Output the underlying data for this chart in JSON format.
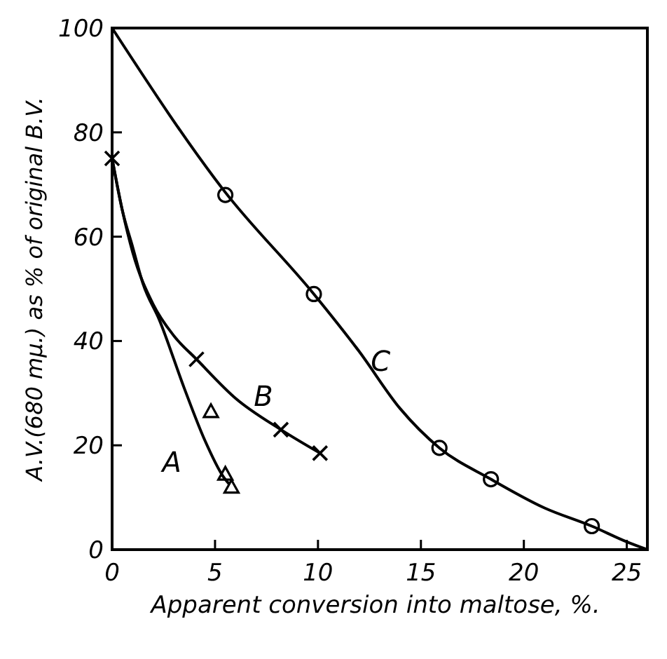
{
  "chart_data": {
    "type": "line",
    "xlabel": "Apparent conversion into maltose, %.",
    "ylabel": "A.V.(680 mμ.) as % of original B.V.",
    "xlim": [
      0,
      26
    ],
    "ylim": [
      0,
      100
    ],
    "xticks": [
      0,
      5,
      10,
      15,
      20,
      25
    ],
    "yticks": [
      0,
      20,
      40,
      60,
      80,
      100
    ],
    "grid": false,
    "legend": false,
    "line_style": "solid",
    "series": [
      {
        "name": "A",
        "color": "#000000",
        "marker": "none",
        "x": [
          0,
          0.5,
          1,
          1.5,
          2.3,
          3.5,
          4.5,
          5.4,
          5.7
        ],
        "values": [
          75,
          65,
          58,
          51,
          44,
          31,
          21,
          14,
          12.5
        ]
      },
      {
        "name": "B",
        "color": "#000000",
        "marker": "none",
        "x": [
          0,
          0.5,
          1,
          2,
          3,
          4.1,
          6,
          8.2,
          10.1
        ],
        "values": [
          75,
          65,
          57,
          47,
          41,
          36.5,
          29,
          23,
          18.5
        ]
      },
      {
        "name": "C",
        "color": "#000000",
        "marker": "none",
        "x": [
          0,
          5.5,
          9.8,
          12,
          14,
          15.9,
          18.4,
          21,
          23.3,
          25,
          26
        ],
        "values": [
          100,
          68.5,
          49,
          38,
          27,
          19.5,
          13.5,
          8,
          4.5,
          1.5,
          0
        ]
      },
      {
        "type": "scatter",
        "color": "#000000",
        "marker": "triangle",
        "x": [
          4.8,
          5.5,
          5.8
        ],
        "values": [
          26.5,
          14.5,
          12
        ]
      },
      {
        "type": "scatter",
        "color": "#000000",
        "marker": "cross",
        "x": [
          0,
          4.1,
          8.2,
          10.1
        ],
        "values": [
          75,
          36.5,
          23,
          18.5
        ]
      },
      {
        "type": "scatter",
        "color": "#000000",
        "marker": "circle",
        "x": [
          5.5,
          9.8,
          15.9,
          18.4,
          23.3
        ],
        "values": [
          68,
          49,
          19.5,
          13.5,
          4.5
        ]
      }
    ]
  }
}
